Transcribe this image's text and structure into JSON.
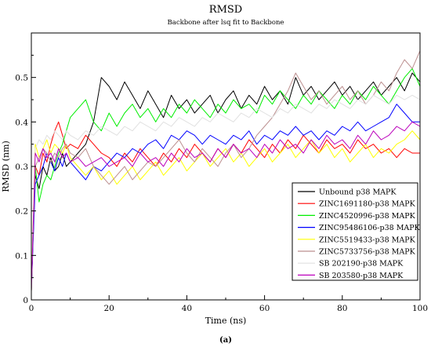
{
  "chart_data": {
    "type": "line",
    "title": "RMSD",
    "subtitle": "Backbone after lsq fit to Backbone",
    "xlabel": "Time (ns)",
    "ylabel": "RMSD (nm)",
    "xlim": [
      0,
      100
    ],
    "ylim": [
      0,
      0.6
    ],
    "xticks": [
      "0",
      "20",
      "40",
      "60",
      "80",
      "100"
    ],
    "yticks": [
      "0",
      "0.1",
      "0.2",
      "0.3",
      "0.4",
      "0.5"
    ],
    "grid": false,
    "legend_position": "bottom-right",
    "caption": "(a)",
    "x": [
      0,
      1,
      2,
      3,
      4,
      5,
      6,
      7,
      8,
      9,
      10,
      12,
      14,
      16,
      18,
      20,
      22,
      24,
      26,
      28,
      30,
      32,
      34,
      36,
      38,
      40,
      42,
      44,
      46,
      48,
      50,
      52,
      54,
      56,
      58,
      60,
      62,
      64,
      66,
      68,
      70,
      72,
      74,
      76,
      78,
      80,
      82,
      84,
      86,
      88,
      90,
      92,
      94,
      96,
      98,
      100
    ],
    "series": [
      {
        "name": "Unbound p38 MAPK",
        "color": "#000000",
        "values": [
          0.03,
          0.28,
          0.25,
          0.3,
          0.28,
          0.32,
          0.29,
          0.3,
          0.33,
          0.3,
          0.31,
          0.33,
          0.35,
          0.4,
          0.5,
          0.48,
          0.45,
          0.49,
          0.46,
          0.43,
          0.47,
          0.44,
          0.41,
          0.46,
          0.43,
          0.45,
          0.42,
          0.44,
          0.46,
          0.42,
          0.45,
          0.47,
          0.43,
          0.46,
          0.44,
          0.48,
          0.45,
          0.47,
          0.44,
          0.5,
          0.46,
          0.48,
          0.45,
          0.47,
          0.49,
          0.46,
          0.48,
          0.45,
          0.47,
          0.49,
          0.46,
          0.48,
          0.5,
          0.47,
          0.51,
          0.49
        ]
      },
      {
        "name": "ZINC1691180-p38 MAPK",
        "color": "#ff0000",
        "values": [
          0.02,
          0.3,
          0.28,
          0.33,
          0.31,
          0.35,
          0.38,
          0.4,
          0.37,
          0.34,
          0.35,
          0.34,
          0.37,
          0.35,
          0.33,
          0.32,
          0.3,
          0.33,
          0.31,
          0.34,
          0.32,
          0.3,
          0.33,
          0.31,
          0.34,
          0.32,
          0.35,
          0.33,
          0.31,
          0.34,
          0.32,
          0.35,
          0.33,
          0.36,
          0.34,
          0.32,
          0.35,
          0.33,
          0.36,
          0.34,
          0.37,
          0.35,
          0.33,
          0.36,
          0.34,
          0.35,
          0.33,
          0.36,
          0.34,
          0.35,
          0.33,
          0.34,
          0.32,
          0.34,
          0.33,
          0.33
        ]
      },
      {
        "name": "ZINC4520996-p38 MAPK",
        "color": "#00ee00",
        "values": [
          0.02,
          0.3,
          0.22,
          0.26,
          0.28,
          0.27,
          0.3,
          0.33,
          0.35,
          0.38,
          0.41,
          0.43,
          0.45,
          0.4,
          0.38,
          0.42,
          0.39,
          0.42,
          0.44,
          0.41,
          0.43,
          0.4,
          0.43,
          0.41,
          0.44,
          0.42,
          0.45,
          0.43,
          0.41,
          0.44,
          0.42,
          0.45,
          0.43,
          0.44,
          0.42,
          0.46,
          0.44,
          0.47,
          0.45,
          0.43,
          0.46,
          0.44,
          0.47,
          0.45,
          0.43,
          0.46,
          0.44,
          0.47,
          0.45,
          0.48,
          0.46,
          0.44,
          0.47,
          0.5,
          0.52,
          0.48
        ]
      },
      {
        "name": "ZINC95486106-p38 MAPK",
        "color": "#0000ff",
        "values": [
          0.02,
          0.26,
          0.28,
          0.3,
          0.33,
          0.31,
          0.29,
          0.32,
          0.3,
          0.33,
          0.31,
          0.29,
          0.27,
          0.3,
          0.29,
          0.31,
          0.33,
          0.32,
          0.34,
          0.33,
          0.35,
          0.36,
          0.34,
          0.37,
          0.36,
          0.38,
          0.37,
          0.35,
          0.37,
          0.36,
          0.35,
          0.37,
          0.36,
          0.38,
          0.35,
          0.37,
          0.36,
          0.38,
          0.37,
          0.39,
          0.37,
          0.38,
          0.36,
          0.38,
          0.37,
          0.39,
          0.38,
          0.4,
          0.38,
          0.39,
          0.4,
          0.41,
          0.44,
          0.42,
          0.4,
          0.4
        ]
      },
      {
        "name": "ZINC5519433-p38 MAPK",
        "color": "#ffff00",
        "values": [
          0.02,
          0.35,
          0.32,
          0.34,
          0.36,
          0.33,
          0.35,
          0.34,
          0.33,
          0.35,
          0.32,
          0.3,
          0.28,
          0.3,
          0.27,
          0.29,
          0.26,
          0.28,
          0.3,
          0.27,
          0.29,
          0.31,
          0.28,
          0.3,
          0.32,
          0.29,
          0.31,
          0.33,
          0.3,
          0.32,
          0.34,
          0.31,
          0.33,
          0.3,
          0.32,
          0.34,
          0.31,
          0.33,
          0.35,
          0.32,
          0.34,
          0.36,
          0.33,
          0.35,
          0.32,
          0.34,
          0.31,
          0.33,
          0.35,
          0.32,
          0.34,
          0.33,
          0.35,
          0.36,
          0.38,
          0.36
        ]
      },
      {
        "name": "ZINC5733756-p38 MAPK",
        "color": "#bc8f8f",
        "values": [
          0.02,
          0.3,
          0.32,
          0.34,
          0.33,
          0.31,
          0.33,
          0.32,
          0.34,
          0.35,
          0.33,
          0.32,
          0.34,
          0.3,
          0.28,
          0.26,
          0.28,
          0.3,
          0.27,
          0.29,
          0.31,
          0.3,
          0.32,
          0.34,
          0.36,
          0.33,
          0.31,
          0.34,
          0.32,
          0.3,
          0.33,
          0.35,
          0.32,
          0.34,
          0.37,
          0.39,
          0.41,
          0.44,
          0.47,
          0.51,
          0.48,
          0.45,
          0.47,
          0.44,
          0.46,
          0.48,
          0.45,
          0.47,
          0.44,
          0.46,
          0.49,
          0.47,
          0.51,
          0.54,
          0.52,
          0.56
        ]
      },
      {
        "name": "SB 202190-p38 MAPK",
        "color": "#e0e0e0",
        "values": [
          0.02,
          0.34,
          0.36,
          0.35,
          0.37,
          0.36,
          0.38,
          0.37,
          0.36,
          0.38,
          0.37,
          0.36,
          0.38,
          0.37,
          0.39,
          0.38,
          0.37,
          0.39,
          0.38,
          0.4,
          0.39,
          0.38,
          0.4,
          0.39,
          0.41,
          0.4,
          0.39,
          0.41,
          0.4,
          0.42,
          0.41,
          0.4,
          0.42,
          0.41,
          0.43,
          0.42,
          0.41,
          0.43,
          0.42,
          0.44,
          0.43,
          0.42,
          0.44,
          0.43,
          0.45,
          0.44,
          0.43,
          0.45,
          0.44,
          0.46,
          0.45,
          0.44,
          0.46,
          0.45,
          0.46,
          0.45
        ]
      },
      {
        "name": "SB 203580-p38 MAPK",
        "color": "#bb00bb",
        "values": [
          0.02,
          0.33,
          0.31,
          0.34,
          0.32,
          0.33,
          0.31,
          0.34,
          0.32,
          0.33,
          0.31,
          0.32,
          0.3,
          0.31,
          0.32,
          0.3,
          0.31,
          0.32,
          0.3,
          0.33,
          0.31,
          0.32,
          0.3,
          0.33,
          0.31,
          0.34,
          0.32,
          0.33,
          0.31,
          0.34,
          0.32,
          0.35,
          0.33,
          0.34,
          0.32,
          0.35,
          0.33,
          0.36,
          0.34,
          0.35,
          0.33,
          0.36,
          0.34,
          0.37,
          0.35,
          0.36,
          0.34,
          0.37,
          0.35,
          0.38,
          0.36,
          0.37,
          0.39,
          0.38,
          0.4,
          0.39
        ]
      }
    ]
  }
}
